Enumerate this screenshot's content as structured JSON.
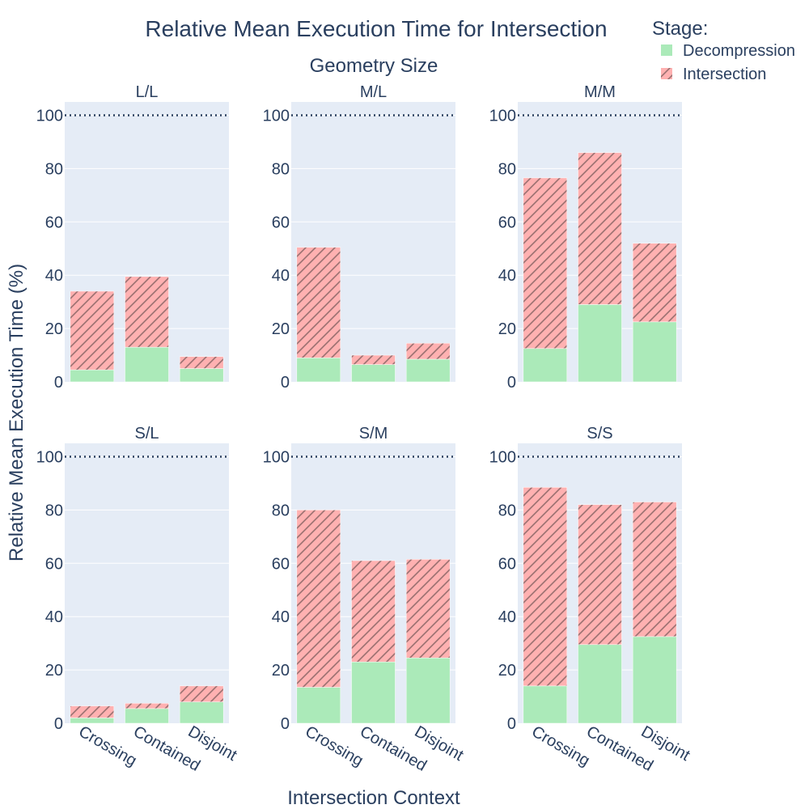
{
  "chart_data": {
    "type": "bar",
    "stacked": true,
    "title": "Relative Mean Execution Time for Intersection",
    "facet_title": "Geometry Size",
    "xlabel": "Intersection Context",
    "ylabel": "Relative Mean Execution Time (%)",
    "legend_title": "Stage:",
    "legend_position": "top-right",
    "ylim": [
      0,
      105
    ],
    "yticks": [
      0,
      20,
      40,
      60,
      80,
      100
    ],
    "reference_line": 100,
    "categories": [
      "Crossing",
      "Contained",
      "Disjoint"
    ],
    "series": [
      {
        "name": "Decompression",
        "color": "#abeab9",
        "pattern": "solid"
      },
      {
        "name": "Intersection",
        "color": "#ffb1b1",
        "pattern": "hatched"
      }
    ],
    "panels": [
      {
        "label": "L/L",
        "decompression": [
          4.5,
          13,
          5
        ],
        "intersection": [
          29.5,
          26.5,
          4.5
        ]
      },
      {
        "label": "M/L",
        "decompression": [
          9,
          6.5,
          8.5
        ],
        "intersection": [
          41.5,
          3.5,
          6
        ]
      },
      {
        "label": "M/M",
        "decompression": [
          12.5,
          29,
          22.5
        ],
        "intersection": [
          64,
          57,
          29.5
        ]
      },
      {
        "label": "S/L",
        "decompression": [
          2,
          5.5,
          8
        ],
        "intersection": [
          4.5,
          2,
          6
        ]
      },
      {
        "label": "S/M",
        "decompression": [
          13.5,
          23,
          24.5
        ],
        "intersection": [
          66.5,
          38,
          37
        ]
      },
      {
        "label": "S/S",
        "decompression": [
          14,
          29.5,
          32.5
        ],
        "intersection": [
          74.5,
          52.5,
          50.5
        ]
      }
    ]
  }
}
